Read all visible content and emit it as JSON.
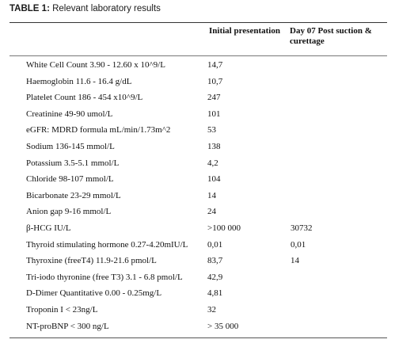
{
  "caption": {
    "label": "TABLE 1:",
    "text": "Relevant laboratory results"
  },
  "columns": {
    "initial": "Initial presentation",
    "day7": "Day 07 Post suction & curettage"
  },
  "rows": [
    {
      "test": "White Cell Count 3.90 - 12.60 x 10^9/L",
      "initial": "14,7",
      "day7": ""
    },
    {
      "test": "Haemoglobin 11.6 - 16.4 g/dL",
      "initial": "10,7",
      "day7": ""
    },
    {
      "test": "Platelet Count 186 - 454 x10^9/L",
      "initial": "247",
      "day7": ""
    },
    {
      "test": "Creatinine 49-90 umol/L",
      "initial": "101",
      "day7": ""
    },
    {
      "test": "eGFR: MDRD formula mL/min/1.73m^2",
      "initial": "53",
      "day7": ""
    },
    {
      "test": "Sodium 136-145 mmol/L",
      "initial": "138",
      "day7": ""
    },
    {
      "test": "Potassium 3.5-5.1 mmol/L",
      "initial": "4,2",
      "day7": ""
    },
    {
      "test": "Chloride 98-107 mmol/L",
      "initial": "104",
      "day7": ""
    },
    {
      "test": "Bicarbonate 23-29 mmol/L",
      "initial": "14",
      "day7": ""
    },
    {
      "test": "Anion gap 9-16 mmol/L",
      "initial": "24",
      "day7": ""
    },
    {
      "test": "β-HCG IU/L",
      "initial": ">100 000",
      "day7": "30732"
    },
    {
      "test": "Thyroid stimulating hormone 0.27-4.20mIU/L",
      "initial": "0,01",
      "day7": "0,01"
    },
    {
      "test": "Thyroxine (freeT4) 11.9-21.6 pmol/L",
      "initial": "83,7",
      "day7": "14"
    },
    {
      "test": "Tri-iodo thyronine (free T3) 3.1 - 6.8 pmol/L",
      "initial": "42,9",
      "day7": ""
    },
    {
      "test": "D-Dimer Quantitative 0.00 - 0.25mg/L",
      "initial": "4,81",
      "day7": ""
    },
    {
      "test": "Troponin I < 23ng/L",
      "initial": "32",
      "day7": ""
    },
    {
      "test": "NT-proBNP < 300 ng/L",
      "initial": "> 35 000",
      "day7": ""
    }
  ]
}
